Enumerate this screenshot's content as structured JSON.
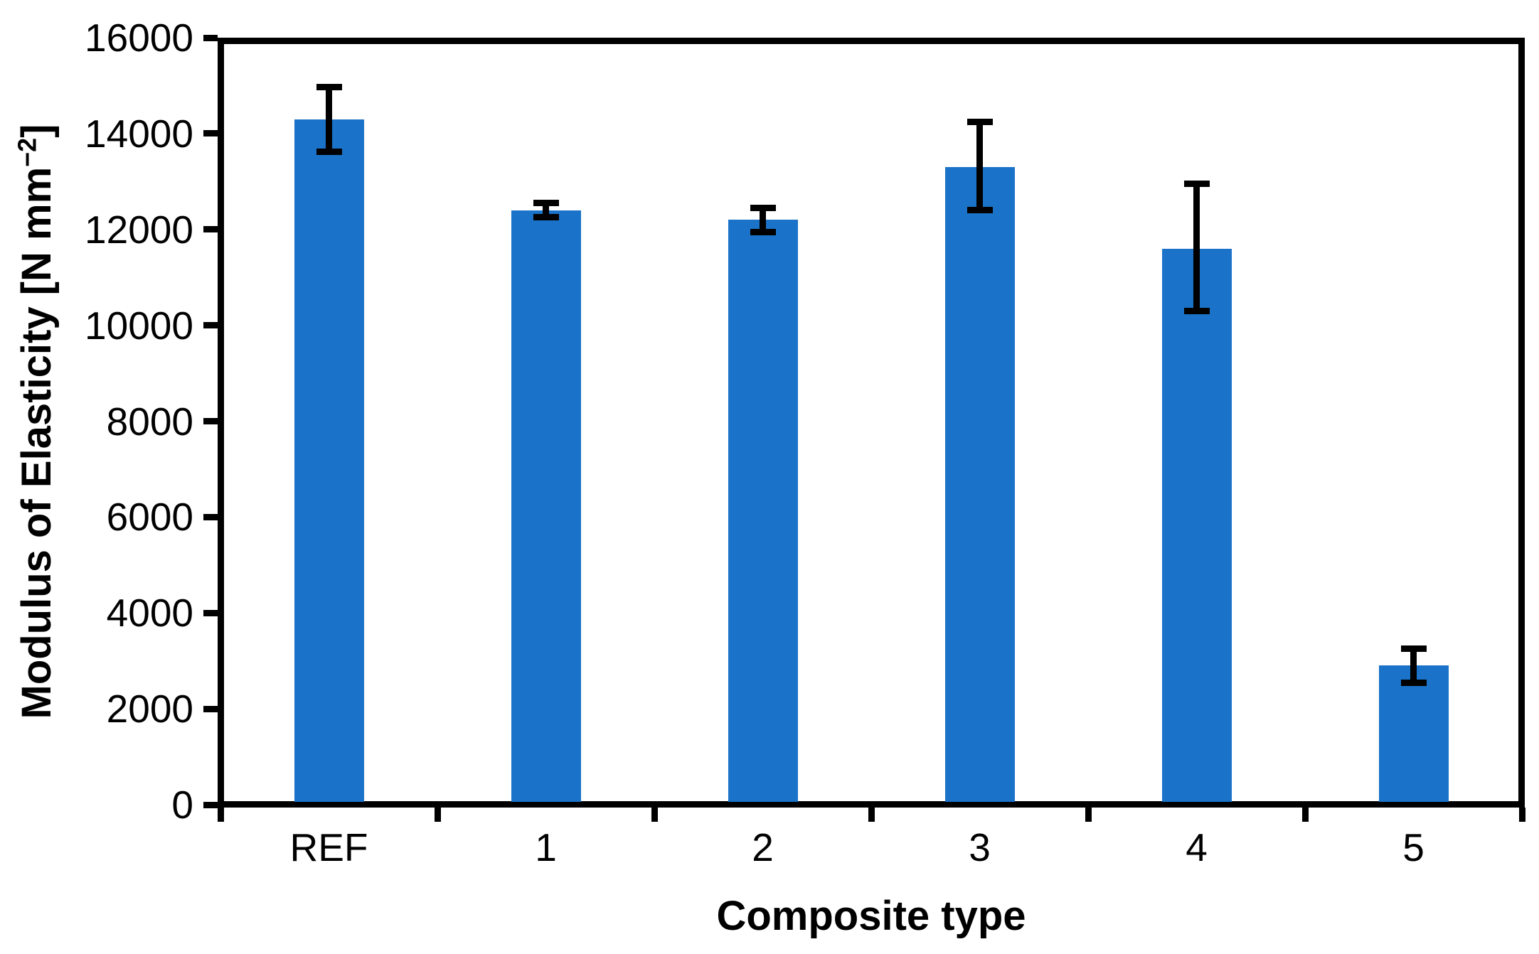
{
  "chart_data": {
    "type": "bar",
    "title": "",
    "xlabel": "Composite type",
    "ylabel": "Modulus of Elasticity [N mm⁻²]",
    "ylabel_parts": {
      "prefix": "Modulus of Elasticity [N mm",
      "superscript": "−2",
      "suffix": "]"
    },
    "categories": [
      "REF",
      "1",
      "2",
      "3",
      "4",
      "5"
    ],
    "series": [
      {
        "name": "Modulus of Elasticity",
        "values": [
          14300,
          12400,
          12200,
          13300,
          11600,
          2900
        ],
        "error_plus": [
          670,
          150,
          250,
          950,
          1350,
          350
        ],
        "error_minus": [
          680,
          150,
          250,
          900,
          1300,
          350
        ]
      }
    ],
    "ylim": [
      0,
      16000
    ],
    "yticks": [
      0,
      2000,
      4000,
      6000,
      8000,
      10000,
      12000,
      14000,
      16000
    ],
    "grid": false,
    "legend": "none",
    "bar_color": "#1b73c9",
    "axis_color": "#000000",
    "error_bar_color": "#000000"
  }
}
